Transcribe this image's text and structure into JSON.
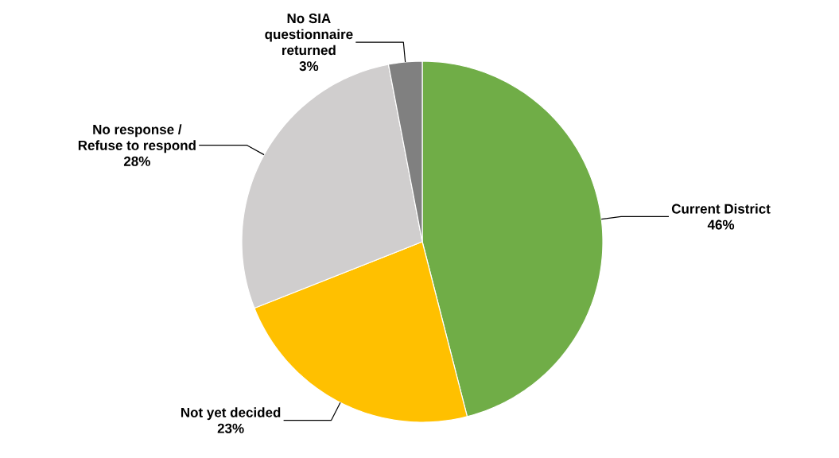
{
  "chart_data": {
    "type": "pie",
    "categories": [
      "Current District",
      "Not yet decided",
      "No response / Refuse to respond",
      "No SIA questionnaire returned"
    ],
    "values": [
      46,
      23,
      28,
      3
    ],
    "value_labels": [
      "46%",
      "23%",
      "28%",
      "3%"
    ],
    "colors": [
      "#70ad47",
      "#ffc000",
      "#d0cece",
      "#808080"
    ]
  }
}
